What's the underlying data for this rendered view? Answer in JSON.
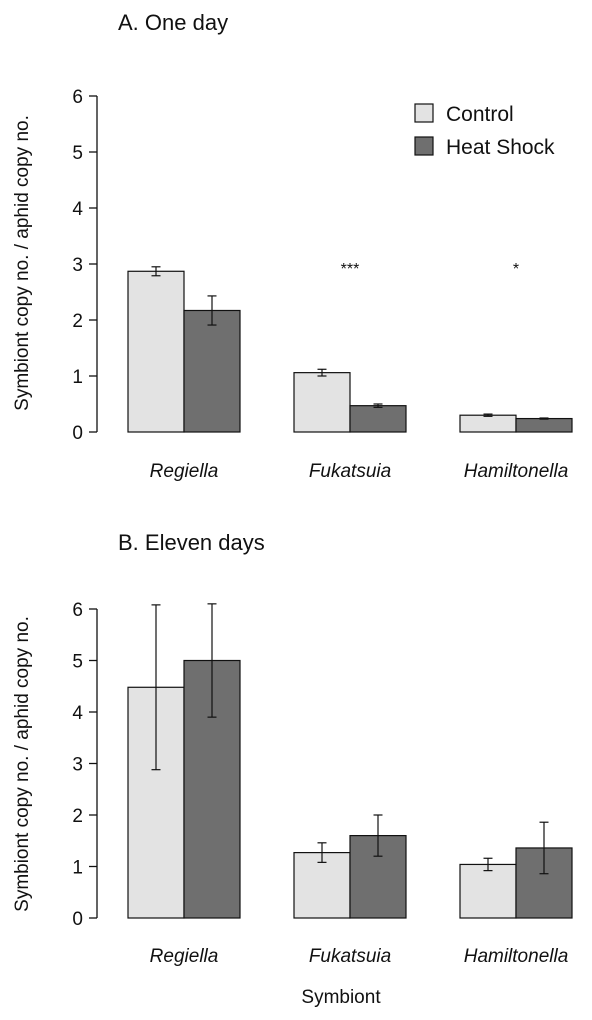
{
  "chart_data": [
    {
      "type": "bar",
      "title": "A. One day",
      "ylabel": "Symbiont copy no. / aphid copy no.",
      "xlabel": "",
      "ylim": [
        0,
        6
      ],
      "yticks": [
        "0",
        "1",
        "2",
        "3",
        "4",
        "5",
        "6"
      ],
      "categories": [
        "Regiella",
        "Fukatsuia",
        "Hamiltonella"
      ],
      "series": [
        {
          "name": "Control",
          "color": "#e3e3e3",
          "values": [
            2.87,
            1.06,
            0.3
          ],
          "error": [
            0.08,
            0.06,
            0.02
          ]
        },
        {
          "name": "Heat Shock",
          "color": "#6f6f6f",
          "values": [
            2.17,
            0.47,
            0.24
          ],
          "error": [
            0.26,
            0.03,
            0.01
          ]
        }
      ],
      "significance": [
        "",
        "***",
        "*"
      ],
      "legend": {
        "position": "top-right",
        "entries": [
          "Control",
          "Heat Shock"
        ]
      }
    },
    {
      "type": "bar",
      "title": "B. Eleven days",
      "ylabel": "Symbiont copy no. / aphid copy no.",
      "xlabel": "Symbiont",
      "ylim": [
        0,
        6
      ],
      "yticks": [
        "0",
        "1",
        "2",
        "3",
        "4",
        "5",
        "6"
      ],
      "categories": [
        "Regiella",
        "Fukatsuia",
        "Hamiltonella"
      ],
      "series": [
        {
          "name": "Control",
          "color": "#e3e3e3",
          "values": [
            4.48,
            1.27,
            1.04
          ],
          "error": [
            1.6,
            0.19,
            0.12
          ]
        },
        {
          "name": "Heat Shock",
          "color": "#6f6f6f",
          "values": [
            5.0,
            1.6,
            1.36
          ],
          "error": [
            1.1,
            0.4,
            0.5
          ]
        }
      ],
      "significance": [
        "",
        "",
        ""
      ]
    }
  ]
}
